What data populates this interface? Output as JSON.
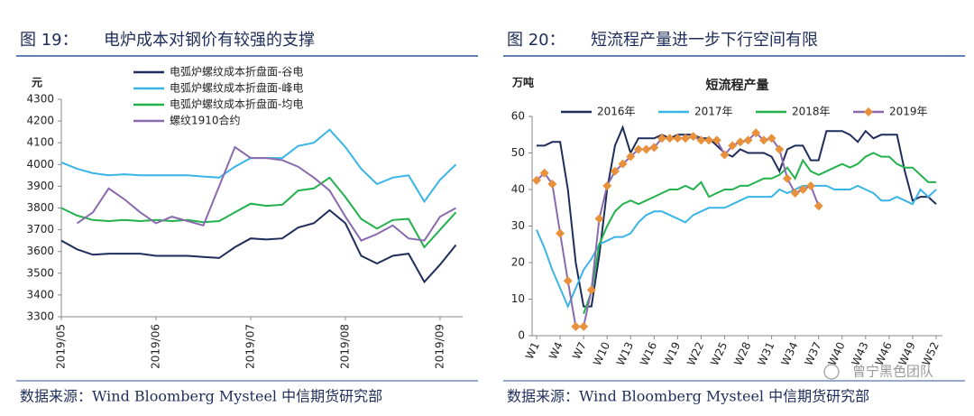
{
  "chart_data": [
    {
      "type": "line",
      "figure": "图 19：",
      "caption": "电炉成本对钢价有较强的支撑",
      "ylabel": "元",
      "categories": [
        "2019/05",
        null,
        null,
        null,
        null,
        null,
        "2019/06",
        null,
        null,
        null,
        null,
        null,
        "2019/07",
        null,
        null,
        null,
        null,
        null,
        "2019/08",
        null,
        null,
        null,
        null,
        null,
        "2019/09",
        null
      ],
      "series": [
        {
          "name": "电弧炉螺纹成本折盘面-谷电",
          "color": "#1f2d5a",
          "values": [
            3650,
            3610,
            3585,
            3590,
            3590,
            3590,
            3580,
            3580,
            3580,
            3575,
            3570,
            3620,
            3660,
            3655,
            3660,
            3710,
            3730,
            3790,
            3730,
            3580,
            3545,
            3580,
            3590,
            3460,
            3540,
            3630
          ]
        },
        {
          "name": "电弧炉螺纹成本折盘面-峰电",
          "color": "#3ab4e6",
          "values": [
            4010,
            3980,
            3960,
            3950,
            3955,
            3950,
            3950,
            3950,
            3950,
            3945,
            3940,
            3990,
            4030,
            4030,
            4030,
            4085,
            4100,
            4160,
            4080,
            3980,
            3910,
            3940,
            3950,
            3830,
            3930,
            4000
          ]
        },
        {
          "name": "电弧炉螺纹成本折盘面-均电",
          "color": "#22b14c",
          "values": [
            3800,
            3765,
            3745,
            3740,
            3745,
            3740,
            3745,
            3740,
            3745,
            3735,
            3740,
            3780,
            3820,
            3810,
            3815,
            3880,
            3890,
            3940,
            3850,
            3750,
            3705,
            3745,
            3750,
            3620,
            3700,
            3780
          ]
        },
        {
          "name": "螺纹1910合约",
          "color": "#8a6aae",
          "values": [
            null,
            3730,
            3780,
            3890,
            3840,
            3780,
            3730,
            3760,
            3740,
            3720,
            3900,
            4080,
            4030,
            4030,
            4020,
            3990,
            3940,
            3880,
            3760,
            3650,
            3680,
            3720,
            3660,
            3650,
            3760,
            3800
          ]
        }
      ],
      "ylim": [
        3300,
        4300
      ],
      "yticks": [
        3300,
        3400,
        3500,
        3600,
        3700,
        3800,
        3900,
        4000,
        4100,
        4200,
        4300
      ],
      "legend": "upper left",
      "source": "数据来源：Wind Bloomberg Mysteel 中信期货研究部"
    },
    {
      "type": "line",
      "figure": "图 20：",
      "caption": "短流程产量进一步下行空间有限",
      "title": "短流程产量",
      "ylabel": "万吨",
      "categories": [
        "W1",
        null,
        null,
        "W4",
        null,
        null,
        "W7",
        null,
        null,
        "W10",
        null,
        null,
        "W13",
        null,
        null,
        "W16",
        null,
        null,
        "W19",
        null,
        null,
        "W22",
        null,
        null,
        "W25",
        null,
        null,
        "W28",
        null,
        null,
        "W31",
        null,
        null,
        "W34",
        null,
        null,
        "W37",
        null,
        null,
        "W40",
        null,
        null,
        "W43",
        null,
        null,
        "W46",
        null,
        null,
        "W49",
        null,
        null,
        "W52"
      ],
      "series": [
        {
          "name": "2016年",
          "color": "#1f2d5a",
          "values": [
            52,
            52,
            53,
            53,
            40,
            20,
            8,
            8,
            22,
            40,
            52,
            57,
            50,
            54,
            54,
            54,
            55,
            54,
            55,
            55,
            55,
            54,
            54,
            52,
            50,
            49,
            51,
            50,
            50,
            50,
            49,
            45,
            51,
            52,
            52,
            48,
            48,
            56,
            56,
            56,
            55,
            53,
            56,
            54,
            55,
            55,
            55,
            45,
            37,
            38,
            38,
            36
          ]
        },
        {
          "name": "2017年",
          "color": "#3ab4e6",
          "values": [
            29,
            24,
            18,
            13,
            8,
            13,
            18,
            21,
            25,
            26,
            27,
            27,
            28,
            31,
            33,
            34,
            34,
            33,
            32,
            31,
            33,
            34,
            35,
            35,
            35,
            36,
            37,
            38,
            38,
            38,
            38,
            40,
            39,
            40,
            41,
            41,
            41,
            41,
            40,
            40,
            40,
            41,
            40,
            39,
            37,
            37,
            38,
            37,
            36,
            40,
            38,
            40
          ]
        },
        {
          "name": "2018年",
          "color": "#22b14c",
          "values": [
            null,
            null,
            null,
            null,
            null,
            null,
            6,
            12,
            25,
            30,
            34,
            36,
            37,
            36,
            37,
            38,
            39,
            40,
            40,
            41,
            40,
            42,
            38,
            39,
            40,
            40,
            41,
            41,
            42,
            43,
            43,
            44,
            46,
            43,
            48,
            45,
            44,
            45,
            46,
            47,
            46,
            47,
            49,
            50,
            49,
            49,
            47,
            46,
            46,
            44,
            42,
            42
          ]
        },
        {
          "name": "2019年",
          "color": "#8a6aae",
          "marker": "diamond",
          "marker_color": "#e8913a",
          "values": [
            42.5,
            44.5,
            41.5,
            28,
            15,
            2.5,
            2.5,
            12.5,
            32,
            41,
            45,
            47,
            49,
            51,
            51,
            51.5,
            54,
            54,
            54,
            54,
            54.5,
            53.5,
            53.5,
            53.5,
            49.5,
            52,
            53,
            53.5,
            55.5,
            53.5,
            54,
            51,
            43,
            39,
            40,
            41,
            35.5,
            null,
            null,
            null,
            null,
            null,
            null,
            null,
            null,
            null,
            null,
            null,
            null,
            null,
            null,
            null
          ]
        }
      ],
      "ylim": [
        0,
        60
      ],
      "yticks": [
        0,
        10,
        20,
        30,
        40,
        50,
        60
      ],
      "legend": "top",
      "source": "数据来源：Wind Bloomberg Mysteel 中信期货研究部"
    }
  ],
  "watermark": "曾宁黑色团队"
}
